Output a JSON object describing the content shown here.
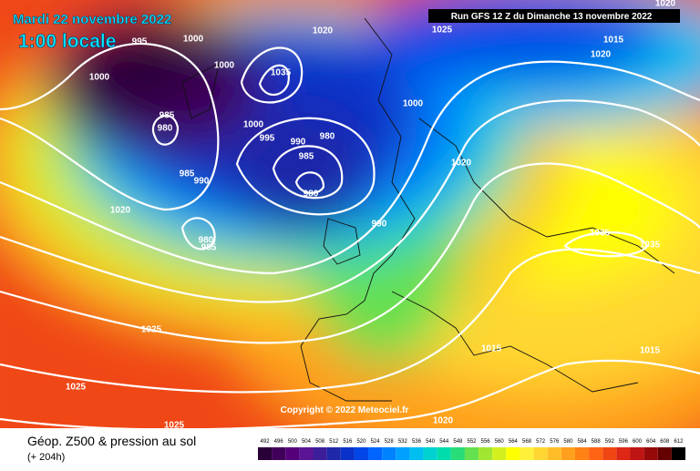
{
  "header": {
    "valid_date": "Mardi 22 novembre 2022",
    "local_time": "1:00 locale",
    "run": "Run GFS 12 Z du Dimanche 13 novembre 2022"
  },
  "copyright": "Copyright © 2022 Meteociel.fr",
  "footer": {
    "title": "Géop. Z500 & pression au sol",
    "lead": "(+ 204h)"
  },
  "legend": {
    "values": [
      492,
      496,
      500,
      504,
      508,
      512,
      516,
      520,
      524,
      528,
      532,
      536,
      540,
      544,
      548,
      552,
      556,
      560,
      564,
      568,
      572,
      576,
      580,
      584,
      588,
      592,
      596,
      600,
      604,
      608,
      612
    ],
    "colors": [
      "#2a0038",
      "#40005a",
      "#55007a",
      "#5a1494",
      "#3c1e9a",
      "#1e28a8",
      "#0a32c8",
      "#0046e6",
      "#0064ff",
      "#0082ff",
      "#00a0ff",
      "#00bef0",
      "#00d2d2",
      "#00dcaa",
      "#28dc78",
      "#64e050",
      "#a0e632",
      "#d2f01e",
      "#ffff00",
      "#fff03c",
      "#ffd732",
      "#ffbe28",
      "#ffa01e",
      "#ff8214",
      "#ff6414",
      "#f04614",
      "#dc2814",
      "#be1414",
      "#960a0a",
      "#640000",
      "#000000"
    ]
  },
  "isobar_labels": [
    995,
    1000,
    1000,
    1000,
    1020,
    1025,
    1020,
    1015,
    1020,
    1035,
    985,
    980,
    1000,
    995,
    990,
    980,
    985,
    980,
    985,
    990,
    1020,
    1020,
    1035,
    1035,
    1025,
    1025,
    1025,
    1015,
    1015,
    1020,
    980,
    985,
    990,
    1000
  ]
}
